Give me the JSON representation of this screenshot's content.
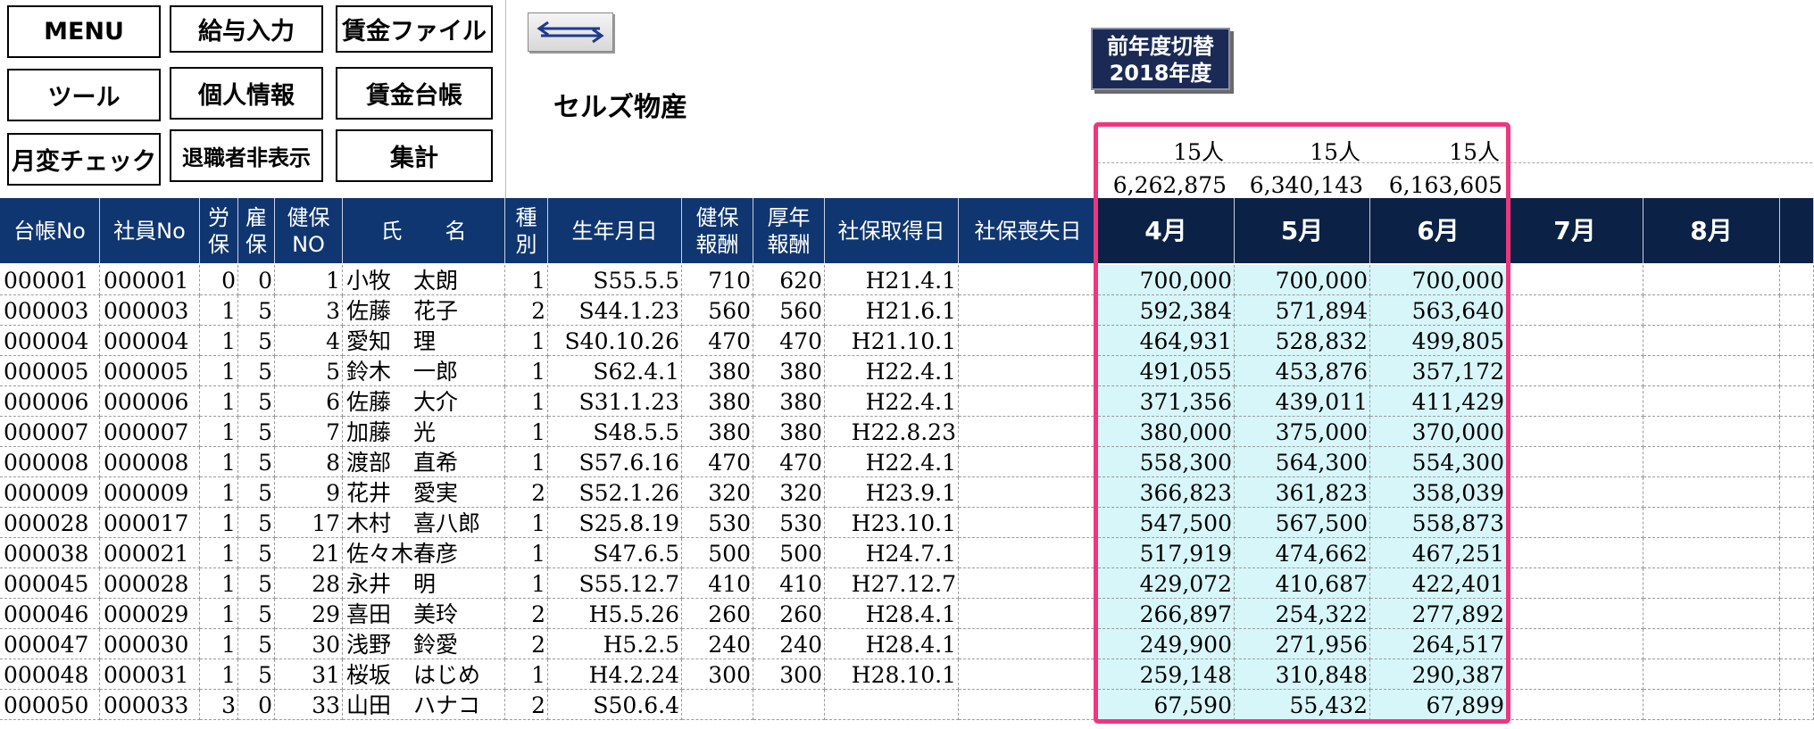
{
  "menu_buttons": [
    {
      "label": "MENU",
      "name": "menu-button"
    },
    {
      "label": "給与入力",
      "name": "salary-input-button"
    },
    {
      "label": "賃金ファイル",
      "name": "wage-file-button"
    },
    {
      "label": "ツール",
      "name": "tools-button"
    },
    {
      "label": "個人情報",
      "name": "personal-info-button"
    },
    {
      "label": "賃金台帳",
      "name": "wage-ledger-button"
    },
    {
      "label": "月変チェック",
      "name": "monthly-change-check-button"
    },
    {
      "label": "退職者非表示",
      "name": "hide-retirees-button"
    },
    {
      "label": "集計",
      "name": "summary-button"
    }
  ],
  "swap_icon": "left-right-arrows-icon",
  "company_name": "セルズ物産",
  "fiscal_year_button": {
    "line1": "前年度切替",
    "line2": "2018年度"
  },
  "summary": {
    "counts": [
      "15人",
      "15人",
      "15人"
    ],
    "totals": [
      "6,262,875",
      "6,340,143",
      "6,163,605"
    ]
  },
  "columns": [
    {
      "label": "台帳No"
    },
    {
      "label": "社員No"
    },
    {
      "label": "労\n保"
    },
    {
      "label": "雇\n保"
    },
    {
      "label": "健保\nNO"
    },
    {
      "label": "氏　　名"
    },
    {
      "label": "種\n別"
    },
    {
      "label": "生年月日"
    },
    {
      "label": "健保\n報酬"
    },
    {
      "label": "厚年\n報酬"
    },
    {
      "label": "社保取得日"
    },
    {
      "label": "社保喪失日"
    },
    {
      "label": "4月"
    },
    {
      "label": "5月"
    },
    {
      "label": "6月"
    },
    {
      "label": "7月"
    },
    {
      "label": "8月"
    }
  ],
  "rows": [
    [
      "000001",
      "000001",
      "0",
      "0",
      "1",
      "小牧　太朗",
      "1",
      "S55.5.5",
      "710",
      "620",
      "H21.4.1",
      "",
      "700,000",
      "700,000",
      "700,000",
      "",
      ""
    ],
    [
      "000003",
      "000003",
      "1",
      "5",
      "3",
      "佐藤　花子",
      "2",
      "S44.1.23",
      "560",
      "560",
      "H21.6.1",
      "",
      "592,384",
      "571,894",
      "563,640",
      "",
      ""
    ],
    [
      "000004",
      "000004",
      "1",
      "5",
      "4",
      "愛知　理",
      "1",
      "S40.10.26",
      "470",
      "470",
      "H21.10.1",
      "",
      "464,931",
      "528,832",
      "499,805",
      "",
      ""
    ],
    [
      "000005",
      "000005",
      "1",
      "5",
      "5",
      "鈴木　一郎",
      "1",
      "S62.4.1",
      "380",
      "380",
      "H22.4.1",
      "",
      "491,055",
      "453,876",
      "357,172",
      "",
      ""
    ],
    [
      "000006",
      "000006",
      "1",
      "5",
      "6",
      "佐藤　大介",
      "1",
      "S31.1.23",
      "380",
      "380",
      "H22.4.1",
      "",
      "371,356",
      "439,011",
      "411,429",
      "",
      ""
    ],
    [
      "000007",
      "000007",
      "1",
      "5",
      "7",
      "加藤　光",
      "1",
      "S48.5.5",
      "380",
      "380",
      "H22.8.23",
      "",
      "380,000",
      "375,000",
      "370,000",
      "",
      ""
    ],
    [
      "000008",
      "000008",
      "1",
      "5",
      "8",
      "渡部　直希",
      "1",
      "S57.6.16",
      "470",
      "470",
      "H22.4.1",
      "",
      "558,300",
      "564,300",
      "554,300",
      "",
      ""
    ],
    [
      "000009",
      "000009",
      "1",
      "5",
      "9",
      "花井　愛実",
      "2",
      "S52.1.26",
      "320",
      "320",
      "H23.9.1",
      "",
      "366,823",
      "361,823",
      "358,039",
      "",
      ""
    ],
    [
      "000028",
      "000017",
      "1",
      "5",
      "17",
      "木村　喜八郎",
      "1",
      "S25.8.19",
      "530",
      "530",
      "H23.10.1",
      "",
      "547,500",
      "567,500",
      "558,873",
      "",
      ""
    ],
    [
      "000038",
      "000021",
      "1",
      "5",
      "21",
      "佐々木春彦",
      "1",
      "S47.6.5",
      "500",
      "500",
      "H24.7.1",
      "",
      "517,919",
      "474,662",
      "467,251",
      "",
      ""
    ],
    [
      "000045",
      "000028",
      "1",
      "5",
      "28",
      "永井　明",
      "1",
      "S55.12.7",
      "410",
      "410",
      "H27.12.7",
      "",
      "429,072",
      "410,687",
      "422,401",
      "",
      ""
    ],
    [
      "000046",
      "000029",
      "1",
      "5",
      "29",
      "喜田　美玲",
      "2",
      "H5.5.26",
      "260",
      "260",
      "H28.4.1",
      "",
      "266,897",
      "254,322",
      "277,892",
      "",
      ""
    ],
    [
      "000047",
      "000030",
      "1",
      "5",
      "30",
      "浅野　鈴愛",
      "2",
      "H5.2.5",
      "240",
      "240",
      "H28.4.1",
      "",
      "249,900",
      "271,956",
      "264,517",
      "",
      ""
    ],
    [
      "000048",
      "000031",
      "1",
      "5",
      "31",
      "桜坂　はじめ",
      "1",
      "H4.2.24",
      "300",
      "300",
      "H28.10.1",
      "",
      "259,148",
      "310,848",
      "290,387",
      "",
      ""
    ],
    [
      "000050",
      "000033",
      "3",
      "0",
      "33",
      "山田　ハナコ",
      "2",
      "S50.6.4",
      "",
      "",
      "",
      "",
      "67,590",
      "55,432",
      "67,899",
      "",
      ""
    ]
  ],
  "colors": {
    "header_bg": "#0f3670",
    "month_header_bg": "#0b2145",
    "highlight_border": "#f0357f",
    "month_cell_bg": "#d7f6fa"
  }
}
